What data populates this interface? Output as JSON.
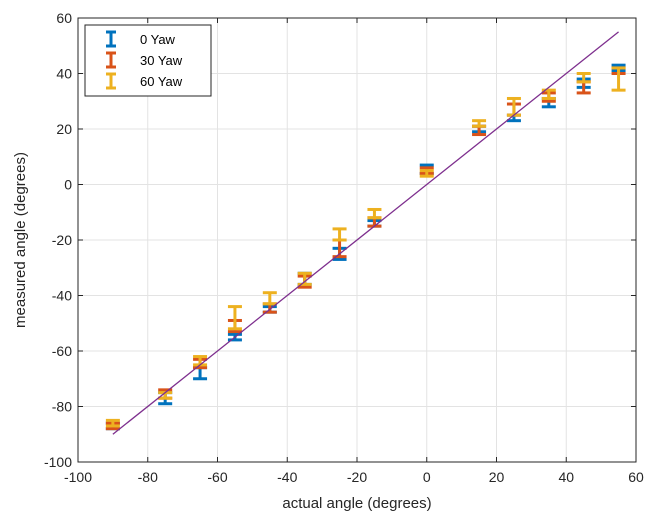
{
  "chart_data": {
    "type": "scatter",
    "title": "",
    "xlabel": "actual angle (degrees)",
    "ylabel": "measured angle (degrees)",
    "xlim": [
      -100,
      60
    ],
    "ylim": [
      -100,
      60
    ],
    "xticks": [
      "-100",
      "-80",
      "-60",
      "-40",
      "-20",
      "0",
      "20",
      "40",
      "60"
    ],
    "yticks": [
      "-100",
      "-80",
      "-60",
      "-40",
      "-20",
      "0",
      "20",
      "40",
      "60"
    ],
    "grid": true,
    "legend_position": "top-left",
    "series": [
      {
        "name": "0 Yaw",
        "color": "#0072BD",
        "x": [
          -90,
          -75,
          -65,
          -55,
          -45,
          -35,
          -25,
          -15,
          0,
          15,
          25,
          35,
          45,
          55
        ],
        "y": [
          -87,
          -77,
          -68,
          -55,
          -45,
          -34,
          -25,
          -14,
          6,
          20,
          24,
          29,
          37,
          42
        ],
        "err_low": [
          -88,
          -79,
          -70,
          -56,
          -46,
          -36,
          -27,
          -15,
          4,
          19,
          23,
          28,
          35,
          41
        ],
        "err_high": [
          -86,
          -75,
          -66,
          -54,
          -44,
          -32,
          -23,
          -13,
          7,
          21,
          25,
          31,
          38,
          43
        ]
      },
      {
        "name": "30 Yaw",
        "color": "#D95319",
        "x": [
          -90,
          -75,
          -65,
          -55,
          -45,
          -35,
          -25,
          -15,
          0,
          15,
          25,
          35,
          45,
          55
        ],
        "y": [
          -87,
          -75,
          -64,
          -51,
          -44,
          -35,
          -22,
          -13,
          5,
          20,
          27,
          31,
          35,
          41
        ],
        "err_low": [
          -88,
          -77,
          -66,
          -53,
          -46,
          -37,
          -26,
          -15,
          4,
          18,
          25,
          30,
          33,
          40
        ],
        "err_high": [
          -86,
          -74,
          -63,
          -49,
          -43,
          -33,
          -20,
          -12,
          6,
          21,
          29,
          33,
          37,
          42
        ]
      },
      {
        "name": "60 Yaw",
        "color": "#EDB120",
        "x": [
          -90,
          -75,
          -65,
          -55,
          -45,
          -35,
          -25,
          -15,
          0,
          15,
          25,
          35,
          45,
          55
        ],
        "y": [
          -86,
          -76,
          -63,
          -48,
          -41,
          -34,
          -18,
          -11,
          4,
          22,
          28,
          33,
          39,
          38
        ],
        "err_low": [
          -87,
          -77,
          -65,
          -52,
          -43,
          -36,
          -20,
          -12,
          3,
          21,
          25,
          31,
          37,
          34
        ],
        "err_high": [
          -85,
          -75,
          -62,
          -44,
          -39,
          -32,
          -16,
          -9,
          5,
          23,
          31,
          34,
          40,
          42
        ]
      },
      {
        "name": "",
        "type": "line",
        "color": "#7E2F8E",
        "x": [
          -90,
          55
        ],
        "y": [
          -90,
          55
        ]
      }
    ]
  }
}
